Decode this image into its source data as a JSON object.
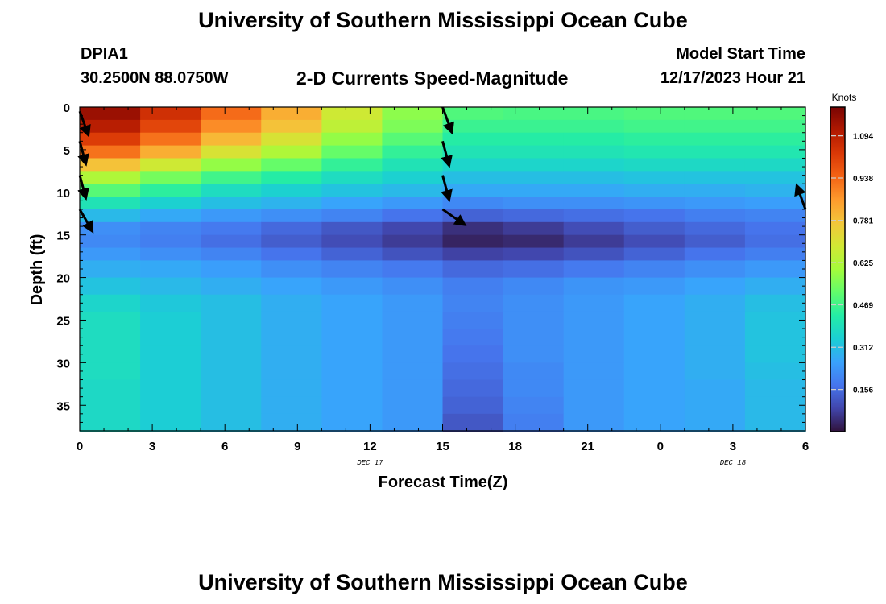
{
  "header": {
    "title": "University of Southern Mississippi Ocean Cube",
    "station_id": "DPIA1",
    "coordinates": "30.2500N  88.0750W",
    "subtitle": "2-D Currents Speed-Magnitude",
    "model_start_label": "Model Start Time",
    "model_start_value": "12/17/2023 Hour 21"
  },
  "footer": {
    "title": "University of Southern Mississippi Ocean Cube"
  },
  "chart_data": {
    "type": "heatmap",
    "title": "2-D Currents Speed-Magnitude",
    "xlabel": "Forecast Time(Z)",
    "ylabel": "Depth (ft)",
    "x_tick_labels": [
      "0",
      "3",
      "6",
      "9",
      "12",
      "15",
      "18",
      "21",
      "0",
      "3",
      "6"
    ],
    "x_date_labels": [
      {
        "label": "DEC 17",
        "at_tick_index": 4
      },
      {
        "label": "DEC 18",
        "at_tick_index": 9
      }
    ],
    "y_ticks": [
      0,
      5,
      10,
      15,
      20,
      25,
      30,
      35
    ],
    "ylim": [
      0,
      38
    ],
    "colorbar": {
      "label": "Knots",
      "ticks": [
        "0.156",
        "0.312",
        "0.469",
        "0.625",
        "0.781",
        "0.938",
        "1.094"
      ],
      "range": [
        0,
        1.2
      ],
      "colors": [
        "#30123b",
        "#4145ab",
        "#4675ed",
        "#39a2fc",
        "#1bcfd4",
        "#24eca6",
        "#61fc6c",
        "#a4fc3b",
        "#d1e834",
        "#f3c63a",
        "#fe9b2d",
        "#f36315",
        "#d93806",
        "#b11901",
        "#7a0403"
      ]
    },
    "time_hours": [
      0,
      2.5,
      5,
      7.5,
      10,
      12.5,
      15,
      17.5,
      20,
      22.5,
      25,
      27.5
    ],
    "depths_ft": [
      0,
      1.5,
      3,
      4.5,
      6,
      7.5,
      9,
      10.5,
      12,
      13.5,
      15,
      16.5,
      18,
      20,
      22,
      24,
      26,
      28,
      30,
      32,
      34,
      36,
      38
    ],
    "speed_knots": [
      [
        1.15,
        1.05,
        0.93,
        0.82,
        0.68,
        0.57,
        0.49,
        0.48,
        0.48,
        0.49,
        0.49,
        0.49
      ],
      [
        1.1,
        1.0,
        0.88,
        0.78,
        0.65,
        0.55,
        0.46,
        0.46,
        0.46,
        0.47,
        0.47,
        0.47
      ],
      [
        1.02,
        0.92,
        0.8,
        0.7,
        0.58,
        0.5,
        0.43,
        0.43,
        0.43,
        0.44,
        0.44,
        0.44
      ],
      [
        0.92,
        0.82,
        0.7,
        0.62,
        0.52,
        0.45,
        0.4,
        0.4,
        0.4,
        0.41,
        0.41,
        0.41
      ],
      [
        0.78,
        0.68,
        0.58,
        0.52,
        0.45,
        0.4,
        0.36,
        0.36,
        0.36,
        0.37,
        0.37,
        0.37
      ],
      [
        0.62,
        0.54,
        0.47,
        0.43,
        0.38,
        0.35,
        0.31,
        0.31,
        0.31,
        0.32,
        0.32,
        0.32
      ],
      [
        0.5,
        0.44,
        0.38,
        0.35,
        0.32,
        0.3,
        0.27,
        0.27,
        0.27,
        0.28,
        0.28,
        0.29
      ],
      [
        0.4,
        0.35,
        0.31,
        0.29,
        0.26,
        0.24,
        0.21,
        0.22,
        0.22,
        0.23,
        0.24,
        0.25
      ],
      [
        0.3,
        0.27,
        0.24,
        0.22,
        0.2,
        0.17,
        0.14,
        0.15,
        0.16,
        0.17,
        0.19,
        0.2
      ],
      [
        0.22,
        0.2,
        0.18,
        0.15,
        0.12,
        0.09,
        0.05,
        0.07,
        0.1,
        0.13,
        0.15,
        0.17
      ],
      [
        0.21,
        0.19,
        0.16,
        0.13,
        0.1,
        0.07,
        0.03,
        0.04,
        0.07,
        0.1,
        0.13,
        0.16
      ],
      [
        0.24,
        0.22,
        0.2,
        0.17,
        0.14,
        0.11,
        0.08,
        0.09,
        0.11,
        0.14,
        0.17,
        0.19
      ],
      [
        0.28,
        0.27,
        0.25,
        0.22,
        0.2,
        0.18,
        0.15,
        0.16,
        0.18,
        0.2,
        0.22,
        0.24
      ],
      [
        0.32,
        0.3,
        0.28,
        0.26,
        0.24,
        0.22,
        0.19,
        0.21,
        0.23,
        0.24,
        0.26,
        0.28
      ],
      [
        0.36,
        0.33,
        0.31,
        0.28,
        0.26,
        0.24,
        0.2,
        0.22,
        0.24,
        0.26,
        0.28,
        0.31
      ],
      [
        0.38,
        0.34,
        0.31,
        0.28,
        0.26,
        0.24,
        0.19,
        0.22,
        0.24,
        0.26,
        0.28,
        0.32
      ],
      [
        0.38,
        0.34,
        0.31,
        0.28,
        0.26,
        0.24,
        0.18,
        0.22,
        0.24,
        0.26,
        0.28,
        0.32
      ],
      [
        0.38,
        0.34,
        0.31,
        0.28,
        0.26,
        0.24,
        0.17,
        0.22,
        0.24,
        0.26,
        0.28,
        0.32
      ],
      [
        0.38,
        0.34,
        0.31,
        0.28,
        0.26,
        0.24,
        0.16,
        0.21,
        0.24,
        0.26,
        0.28,
        0.31
      ],
      [
        0.37,
        0.34,
        0.31,
        0.28,
        0.26,
        0.24,
        0.15,
        0.21,
        0.24,
        0.26,
        0.27,
        0.3
      ],
      [
        0.37,
        0.34,
        0.31,
        0.28,
        0.26,
        0.24,
        0.14,
        0.2,
        0.24,
        0.26,
        0.27,
        0.3
      ],
      [
        0.37,
        0.34,
        0.31,
        0.28,
        0.26,
        0.24,
        0.12,
        0.19,
        0.24,
        0.26,
        0.27,
        0.3
      ],
      [
        0.37,
        0.34,
        0.31,
        0.28,
        0.26,
        0.24,
        0.1,
        0.18,
        0.24,
        0.26,
        0.27,
        0.3
      ]
    ],
    "arrows": [
      {
        "hour": 0,
        "depth_ft": 0.5,
        "angle_deg": 160,
        "length": 30
      },
      {
        "hour": 0,
        "depth_ft": 4,
        "angle_deg": 165,
        "length": 28
      },
      {
        "hour": 0,
        "depth_ft": 8,
        "angle_deg": 165,
        "length": 28
      },
      {
        "hour": 0,
        "depth_ft": 12,
        "angle_deg": 150,
        "length": 30
      },
      {
        "hour": 15,
        "depth_ft": 0,
        "angle_deg": 160,
        "length": 32
      },
      {
        "hour": 15,
        "depth_ft": 4,
        "angle_deg": 165,
        "length": 30
      },
      {
        "hour": 15,
        "depth_ft": 8,
        "angle_deg": 165,
        "length": 30
      },
      {
        "hour": 15,
        "depth_ft": 12,
        "angle_deg": 125,
        "length": 32
      },
      {
        "hour": 30,
        "depth_ft": 12,
        "angle_deg": -20,
        "length": 30
      }
    ]
  }
}
